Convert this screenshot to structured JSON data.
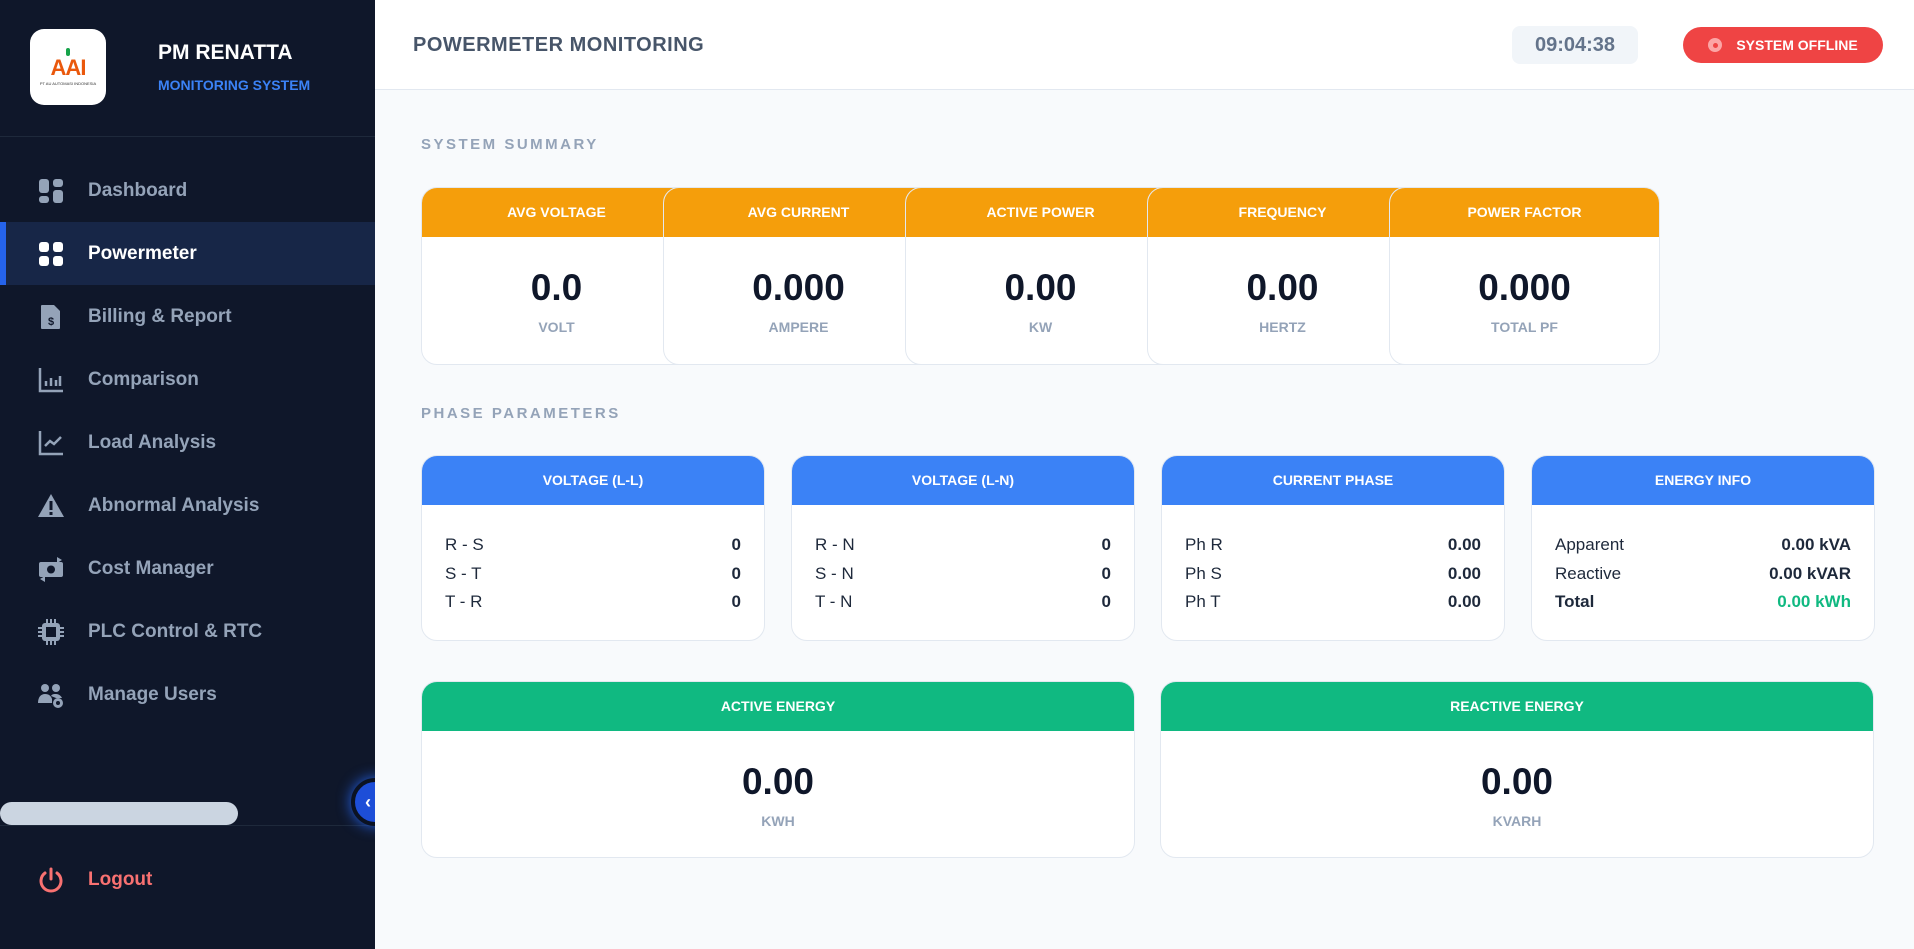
{
  "sidebar": {
    "brand_title": "PM RENATTA",
    "brand_subtitle": "MONITORING SYSTEM",
    "logo_text": "AAI",
    "logo_caption": "PT AU AUTOMASI INDONESIA",
    "items": [
      {
        "label": "Dashboard",
        "icon": "dashboard-icon"
      },
      {
        "label": "Powermeter",
        "icon": "grid-icon",
        "active": true
      },
      {
        "label": "Billing & Report",
        "icon": "invoice-dollar-icon"
      },
      {
        "label": "Comparison",
        "icon": "bar-chart-icon"
      },
      {
        "label": "Load Analysis",
        "icon": "line-chart-icon"
      },
      {
        "label": "Abnormal Analysis",
        "icon": "warning-icon"
      },
      {
        "label": "Cost Manager",
        "icon": "money-exchange-icon"
      },
      {
        "label": "PLC Control & RTC",
        "icon": "chip-icon"
      },
      {
        "label": "Manage Users",
        "icon": "users-gear-icon"
      }
    ],
    "logout_label": "Logout"
  },
  "header": {
    "title": "POWERMETER MONITORING",
    "clock": "09:04:38",
    "status": "SYSTEM OFFLINE"
  },
  "summary": {
    "title": "SYSTEM SUMMARY",
    "cards": [
      {
        "label": "AVG VOLTAGE",
        "value": "0.0",
        "unit": "VOLT"
      },
      {
        "label": "AVG CURRENT",
        "value": "0.000",
        "unit": "AMPERE"
      },
      {
        "label": "ACTIVE POWER",
        "value": "0.00",
        "unit": "KW"
      },
      {
        "label": "FREQUENCY",
        "value": "0.00",
        "unit": "HERTZ"
      },
      {
        "label": "POWER FACTOR",
        "value": "0.000",
        "unit": "TOTAL PF"
      }
    ]
  },
  "phase": {
    "title": "PHASE PARAMETERS",
    "cards": [
      {
        "label": "VOLTAGE (L-L)",
        "rows": [
          {
            "k": "R - S",
            "v": "0"
          },
          {
            "k": "S - T",
            "v": "0"
          },
          {
            "k": "T - R",
            "v": "0"
          }
        ]
      },
      {
        "label": "VOLTAGE (L-N)",
        "rows": [
          {
            "k": "R - N",
            "v": "0"
          },
          {
            "k": "S - N",
            "v": "0"
          },
          {
            "k": "T - N",
            "v": "0"
          }
        ]
      },
      {
        "label": "CURRENT PHASE",
        "rows": [
          {
            "k": "Ph R",
            "v": "0.00"
          },
          {
            "k": "Ph S",
            "v": "0.00"
          },
          {
            "k": "Ph T",
            "v": "0.00"
          }
        ]
      },
      {
        "label": "ENERGY INFO",
        "rows": [
          {
            "k": "Apparent",
            "v": "0.00 kVA"
          },
          {
            "k": "Reactive",
            "v": "0.00 kVAR"
          },
          {
            "k": "Total",
            "v": "0.00 kWh"
          }
        ]
      }
    ]
  },
  "energy": [
    {
      "label": "ACTIVE ENERGY",
      "value": "0.00",
      "unit": "KWH"
    },
    {
      "label": "REACTIVE ENERGY",
      "value": "0.00",
      "unit": "KVARH"
    }
  ],
  "colors": {
    "sidebar": "#0f172a",
    "accent": "#2563eb",
    "summary_header": "#f59e0b",
    "phase_header": "#3b82f6",
    "energy_header": "#10b981",
    "offline": "#ef4444"
  }
}
